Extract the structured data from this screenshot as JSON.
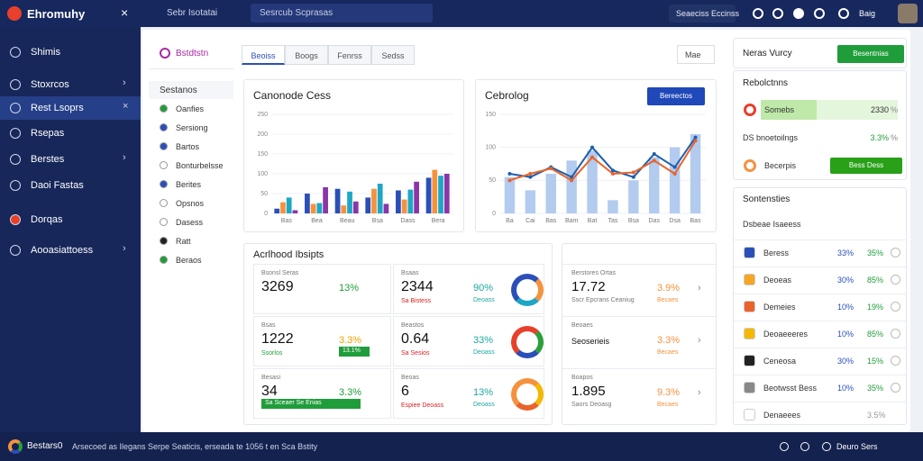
{
  "topbar": {
    "brand": "Ehromuhy",
    "nav": "Sebr Isotatai",
    "search": "Sesrcub Scprasas",
    "button": "Seaeciss Eccinss",
    "user": "Baig"
  },
  "sidebar": {
    "items": [
      "Shimis",
      "Stoxrcos",
      "Rest Lsoprs",
      "Rsepas",
      "Berstes",
      "Daoi Fastas",
      "Dorqas",
      "Aooasiattoess"
    ]
  },
  "subnav": {
    "title": "Bstdtstn",
    "items": [
      "Sestanos",
      "Oanfies",
      "Sersiong",
      "Bartos",
      "Bonturbelsse",
      "Berites",
      "Opsnos",
      "Dasess",
      "Ratt",
      "Beraos"
    ]
  },
  "tabs": [
    "Beoiss",
    "Boogs",
    "Fenrss",
    "Sedss"
  ],
  "dropdown": "Mae",
  "charts": [
    {
      "type": "bar",
      "title": "Canonode Cess",
      "categories": [
        "Bas",
        "Bea",
        "Beau",
        "Bsa",
        "Dass",
        "Bera"
      ],
      "series": [
        {
          "color": "#2b4fb8",
          "values": [
            12,
            50,
            62,
            40,
            58,
            90
          ]
        },
        {
          "color": "#f5923e",
          "values": [
            28,
            24,
            20,
            62,
            35,
            110
          ]
        },
        {
          "color": "#1ea7c5",
          "values": [
            40,
            26,
            55,
            75,
            60,
            95
          ]
        },
        {
          "color": "#8a35a8",
          "values": [
            8,
            66,
            30,
            24,
            80,
            100
          ]
        }
      ],
      "ylim": [
        0,
        250
      ],
      "yticks": [
        0,
        50,
        100,
        150,
        200,
        250
      ]
    },
    {
      "type": "combo",
      "title": "Cebrolog",
      "button": "Bereectos",
      "categories": [
        "Ba",
        "Cai",
        "Bas",
        "Bam",
        "Bat",
        "Tas",
        "Bsa",
        "Das",
        "Dsa",
        "Bas"
      ],
      "series": [
        {
          "kind": "bar",
          "color": "#b3cbef",
          "values": [
            55,
            35,
            60,
            80,
            95,
            20,
            50,
            85,
            100,
            120
          ]
        },
        {
          "kind": "line",
          "color": "#1d5fb0",
          "values": [
            60,
            55,
            70,
            55,
            100,
            65,
            55,
            90,
            70,
            115
          ]
        },
        {
          "kind": "line",
          "color": "#e8642a",
          "values": [
            50,
            60,
            68,
            50,
            85,
            60,
            62,
            80,
            60,
            110
          ]
        }
      ],
      "ylim": [
        0,
        150
      ],
      "yticks": [
        0,
        50,
        100,
        150
      ]
    }
  ],
  "insights": {
    "title": "Acrlhood Ibsipts",
    "cells": [
      {
        "label": "Bsonsl Seras",
        "value": "3269",
        "change": "13%"
      },
      {
        "label": "Bsaas",
        "value": "2344",
        "sub": "Sa Bistess",
        "change": "90%",
        "note": "Deoass"
      },
      {
        "label": "Bsas",
        "value": "1222",
        "sub": "Ssorlos",
        "change": "3.3%",
        "tag": "13.1%"
      },
      {
        "label": "Beastos",
        "value": "0.64",
        "sub": "Sa Sesios",
        "change": "33%",
        "note": "Deoass"
      },
      {
        "label": "Besasi",
        "value": "34",
        "tag": "Sa Sceaer Se Enias",
        "change": "3.3%"
      },
      {
        "label": "Beoas",
        "value": "6",
        "sub": "Espiee Deoass",
        "change": "13%",
        "note": "Deoass"
      }
    ]
  },
  "summary": {
    "rows": [
      {
        "label": "Berstores Ortas",
        "value": "17.72",
        "sub": "Sscr Epcrans Ceaniug",
        "change": "3.9%",
        "note": "Becaes"
      },
      {
        "label": "Beoaes",
        "value": "Seoserieis",
        "sub": "",
        "change": "3.3%",
        "note": "Becaes"
      },
      {
        "label": "Boapos",
        "value": "1.895",
        "sub": "Saors Deoasg",
        "change": "9.3%",
        "note": "Becaes"
      }
    ]
  },
  "right": {
    "title": "Neras Vurcy",
    "button": "Besentnias",
    "panel": {
      "title": "Rebolctnns",
      "rows": [
        {
          "label": "Somebs",
          "value": "2330",
          "unit": "%"
        },
        {
          "label": "DS bnoetoilngs",
          "value": "3.3%",
          "unit": "%"
        },
        {
          "label": "Becerpis",
          "value": "Bess Dess"
        }
      ]
    },
    "list": {
      "title": "Sontensties",
      "subtitle": "Dsbeae Isaeess",
      "rows": [
        {
          "label": "Beress",
          "a": "33%",
          "b": "35%",
          "color": "#2b4fb8"
        },
        {
          "label": "Deoeas",
          "a": "30%",
          "b": "85%",
          "color": "#f5a623"
        },
        {
          "label": "Demeies",
          "a": "10%",
          "b": "19%",
          "color": "#e8642a"
        },
        {
          "label": "Deoaeeeres",
          "a": "10%",
          "b": "85%",
          "color": "#f5b800"
        },
        {
          "label": "Ceneosa",
          "a": "30%",
          "b": "15%",
          "color": "#222"
        },
        {
          "label": "Beotwsst Bess",
          "a": "10%",
          "b": "35%",
          "color": "#888"
        },
        {
          "label": "Denaeees",
          "a": "",
          "b": "3.5%",
          "color": "#fff"
        }
      ]
    }
  },
  "footer": {
    "brand": "Bestars0",
    "text": "Arsecoed as Ilegans Serpe Seaticis, erseada te 1056 t en Sca Bstity",
    "right": "Deuro Sers"
  }
}
